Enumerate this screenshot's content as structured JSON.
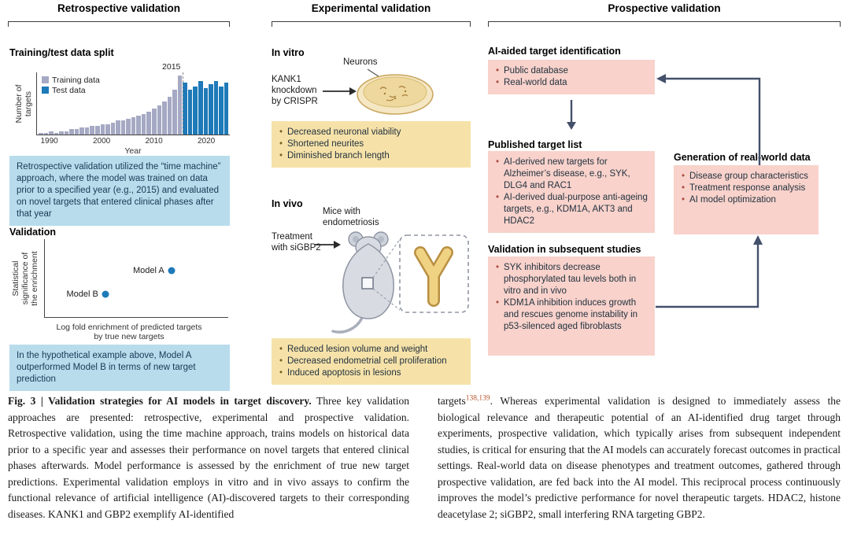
{
  "figure_label": "Fig. 3",
  "colors": {
    "training_bar": "#a6a9c3",
    "test_bar": "#1e7ab8",
    "box_blue": "#b8dcec",
    "box_yellow": "#f6e2a9",
    "box_pink": "#f8d2cb",
    "arrow_color": "#44506b",
    "ref_color": "#b4532a"
  },
  "columns": {
    "retrospective": {
      "header": "Retrospective validation",
      "chart_title": "Training/test data split",
      "time_machine_box": "Retrospective validation utilized the “time machine” approach, where the model was trained on data prior to a specified year (e.g., 2015) and evaluated on novel targets that entered clinical phases after that year",
      "validation_title": "Validation",
      "conclusion_box": "In the hypothetical example above, Model A outperformed Model B in terms of new target prediction"
    },
    "experimental": {
      "header": "Experimental validation",
      "in_vitro_label": "In vitro",
      "in_vivo_label": "In vivo",
      "neurons_label": "Neurons",
      "kank1_label": "KANK1\nknockdown\nby CRISPR",
      "mice_label": "Mice with\nendometriosis",
      "treatment_label": "Treatment\nwith siGBP2",
      "in_vitro_results": [
        "Decreased neuronal viability",
        "Shortened neurites",
        "Diminished branch length"
      ],
      "in_vivo_results": [
        "Reduced lesion volume and weight",
        "Decreased endometrial cell proliferation",
        "Induced apoptosis in lesions"
      ]
    },
    "prospective": {
      "header": "Prospective validation",
      "identification_title": "AI-aided target identification",
      "identification_items": [
        "Public database",
        "Real-world data"
      ],
      "published_title": "Published target list",
      "published_items": [
        "AI-derived new targets for Alzheimer’s disease, e.g., SYK, DLG4 and RAC1",
        "AI-derived dual-purpose anti-ageing targets, e.g., KDM1A, AKT3 and HDAC2"
      ],
      "generation_title": "Generation of real-world data",
      "generation_items": [
        "Disease group characteristics",
        "Treatment response analysis",
        "AI model optimization"
      ],
      "validation_title": "Validation in subsequent studies",
      "validation_items": [
        "SYK inhibitors decrease phosphorylated tau levels both in vitro and in vivo",
        "KDM1A inhibition induces growth and rescues genome instability in p53-silenced aged fibroblasts"
      ]
    }
  },
  "chart_data": [
    {
      "type": "bar",
      "title": "Training/test data split",
      "xlabel": "Year",
      "ylabel": "Number of targets",
      "ylabel_display": "Number of\ntargets",
      "legend": [
        "Training data",
        "Test data"
      ],
      "split_year": 2015,
      "split_label": "2015",
      "years": [
        1988,
        1989,
        1990,
        1991,
        1992,
        1993,
        1994,
        1995,
        1996,
        1997,
        1998,
        1999,
        2000,
        2001,
        2002,
        2003,
        2004,
        2005,
        2006,
        2007,
        2008,
        2009,
        2010,
        2011,
        2012,
        2013,
        2014,
        2015,
        2016,
        2017,
        2018,
        2019,
        2020,
        2021,
        2022,
        2023,
        2024
      ],
      "values": [
        1,
        1,
        2,
        1,
        2,
        2,
        3,
        3,
        4,
        4,
        5,
        5,
        6,
        6,
        7,
        8,
        8,
        9,
        10,
        11,
        12,
        13,
        15,
        17,
        19,
        22,
        26,
        34,
        30,
        26,
        28,
        31,
        27,
        29,
        31,
        28,
        30
      ],
      "xticks": [
        1990,
        2000,
        2010,
        2020
      ],
      "ylim": [
        0,
        36
      ],
      "grid": false,
      "legend_position": "upper-left"
    },
    {
      "type": "scatter",
      "xlabel": "Log fold enrichment of predicted targets by true new targets",
      "xlabel_display": "Log fold enrichment of predicted targets\nby true new targets",
      "ylabel": "Statistical significance of the enrichment",
      "ylabel_display": "Statistical\nsignificance of\nthe enrichment",
      "xlim": [
        0,
        10
      ],
      "ylim": [
        0,
        10
      ],
      "points": [
        {
          "label": "Model A",
          "x": 6.9,
          "y": 6.0
        },
        {
          "label": "Model B",
          "x": 3.3,
          "y": 2.9
        }
      ]
    }
  ],
  "caption": {
    "left_bold": "Fig. 3 | Validation strategies for AI models in target discovery.",
    "left_body": " Three key validation approaches are presented: retrospective, experimental and prospective validation. Retrospective validation, using the time machine approach, trains models on historical data prior to a specific year and assesses their performance on novel targets that entered clinical phases afterwards. Model performance is assessed by the enrichment of true new target predictions. Experimental validation employs in vitro and in vivo assays to confirm the functional relevance of artificial intelligence (AI)-discovered targets to their corresponding diseases. KANK1 and GBP2 exemplify AI-identified",
    "right_pre": "targets",
    "right_refs": "138,139",
    "right_body": ". Whereas experimental validation is designed to immediately assess the biological relevance and therapeutic potential of an AI-identified drug target through experiments, prospective validation, which typically arises from subsequent independent studies, is critical for ensuring that the AI models can accurately forecast outcomes in practical settings. Real-world data on disease phenotypes and treatment outcomes, gathered through prospective validation, are fed back into the AI model. This reciprocal process continuously improves the model’s predictive performance for novel therapeutic targets. HDAC2, histone deacetylase 2; siGBP2, small interfering RNA targeting GBP2."
  }
}
